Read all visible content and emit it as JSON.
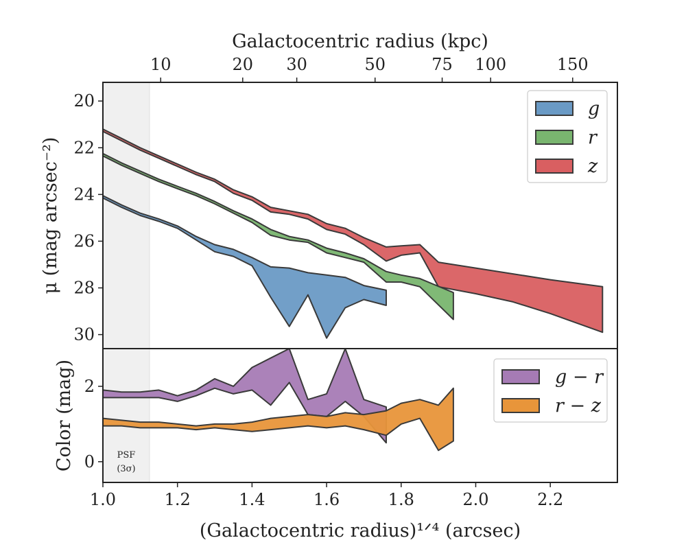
{
  "chart_data": [
    {
      "type": "area",
      "panel": "surface-brightness",
      "ylabel": "μ (mag arcsec⁻²)",
      "ylim": [
        30.6,
        19.2
      ],
      "y_inverted": true,
      "yticks": [
        20,
        22,
        24,
        26,
        28,
        30
      ],
      "xlim": [
        1.0,
        2.38
      ],
      "top_axis": {
        "label": "Galactocentric radius (kpc)",
        "ticks": [
          {
            "label": "10",
            "x": 1.155
          },
          {
            "label": "20",
            "x": 1.375
          },
          {
            "label": "30",
            "x": 1.52
          },
          {
            "label": "50",
            "x": 1.73
          },
          {
            "label": "75",
            "x": 1.91
          },
          {
            "label": "100",
            "x": 2.04
          },
          {
            "label": "150",
            "x": 2.26
          }
        ]
      },
      "shaded_region": {
        "x0": 1.0,
        "x1": 1.125,
        "label_line1": "PSF",
        "label_line2": "(3σ)"
      },
      "legend": {
        "placement": "top-right",
        "entries": [
          "g",
          "r",
          "z"
        ]
      },
      "series": [
        {
          "name": "g",
          "color": "#6a9ac5",
          "x": [
            1.0,
            1.05,
            1.1,
            1.15,
            1.2,
            1.25,
            1.3,
            1.35,
            1.4,
            1.45,
            1.5,
            1.55,
            1.6,
            1.65,
            1.7,
            1.76
          ],
          "y_upper": [
            24.05,
            24.45,
            24.8,
            25.05,
            25.35,
            25.8,
            26.15,
            26.35,
            26.7,
            27.1,
            27.15,
            27.35,
            27.45,
            27.55,
            27.9,
            28.1
          ],
          "y_lower": [
            24.15,
            24.55,
            24.9,
            25.15,
            25.45,
            25.95,
            26.45,
            26.65,
            27.05,
            28.4,
            29.65,
            28.3,
            30.15,
            28.85,
            28.5,
            28.75
          ]
        },
        {
          "name": "r",
          "color": "#79b56f",
          "x": [
            1.0,
            1.05,
            1.1,
            1.15,
            1.2,
            1.25,
            1.3,
            1.35,
            1.4,
            1.45,
            1.5,
            1.55,
            1.6,
            1.65,
            1.7,
            1.76,
            1.8,
            1.85,
            1.94
          ],
          "y_upper": [
            22.25,
            22.65,
            23.0,
            23.35,
            23.65,
            23.95,
            24.3,
            24.7,
            25.05,
            25.5,
            25.8,
            25.95,
            26.3,
            26.5,
            26.75,
            27.3,
            27.45,
            27.6,
            28.2
          ],
          "y_lower": [
            22.35,
            22.75,
            23.1,
            23.45,
            23.75,
            24.05,
            24.4,
            24.8,
            25.2,
            25.75,
            25.95,
            26.05,
            26.5,
            26.7,
            26.9,
            27.75,
            27.75,
            27.95,
            29.35
          ]
        },
        {
          "name": "z",
          "color": "#d95f61",
          "x": [
            1.0,
            1.05,
            1.1,
            1.15,
            1.2,
            1.25,
            1.3,
            1.35,
            1.4,
            1.45,
            1.5,
            1.55,
            1.6,
            1.65,
            1.7,
            1.76,
            1.8,
            1.85,
            1.9,
            2.0,
            2.1,
            2.2,
            2.34
          ],
          "y_upper": [
            21.2,
            21.6,
            22.0,
            22.35,
            22.7,
            23.05,
            23.35,
            23.8,
            24.1,
            24.55,
            24.7,
            24.85,
            25.25,
            25.45,
            25.85,
            26.25,
            26.2,
            26.15,
            26.9,
            27.15,
            27.4,
            27.65,
            27.95
          ],
          "y_lower": [
            21.3,
            21.7,
            22.1,
            22.45,
            22.8,
            23.15,
            23.45,
            23.95,
            24.25,
            24.75,
            24.85,
            25.05,
            25.5,
            25.7,
            26.15,
            26.85,
            26.6,
            26.5,
            27.95,
            28.25,
            28.6,
            29.1,
            29.9
          ]
        }
      ]
    },
    {
      "type": "area",
      "panel": "color",
      "xlabel": "(Galactocentric radius)¹ᐟ⁴ (arcsec)",
      "ylabel": "Color (mag)",
      "ylim": [
        -0.55,
        3.0
      ],
      "yticks": [
        0,
        2
      ],
      "xlim": [
        1.0,
        2.38
      ],
      "xticks": [
        1.0,
        1.2,
        1.4,
        1.6,
        1.8,
        2.0,
        2.2
      ],
      "xtick_labels": [
        "1.0",
        "1.2",
        "1.4",
        "1.6",
        "1.8",
        "2.0",
        "2.2"
      ],
      "shaded_region": {
        "x0": 1.0,
        "x1": 1.125
      },
      "legend": {
        "placement": "top-right",
        "entries": [
          "g − r",
          "r − z"
        ]
      },
      "series": [
        {
          "name": "g − r",
          "color": "#a67bb5",
          "x": [
            1.0,
            1.05,
            1.1,
            1.15,
            1.2,
            1.25,
            1.3,
            1.35,
            1.4,
            1.45,
            1.5,
            1.55,
            1.6,
            1.65,
            1.7,
            1.76
          ],
          "y_upper": [
            1.9,
            1.85,
            1.85,
            1.9,
            1.75,
            1.9,
            2.2,
            2.0,
            2.5,
            2.75,
            3.0,
            1.65,
            1.8,
            3.0,
            1.65,
            1.45
          ],
          "y_lower": [
            1.7,
            1.7,
            1.7,
            1.7,
            1.6,
            1.75,
            1.95,
            1.8,
            1.9,
            1.5,
            2.1,
            1.25,
            1.2,
            1.6,
            1.2,
            0.5
          ]
        },
        {
          "name": "r − z",
          "color": "#e8953a",
          "x": [
            1.0,
            1.05,
            1.1,
            1.15,
            1.2,
            1.25,
            1.3,
            1.35,
            1.4,
            1.45,
            1.5,
            1.55,
            1.6,
            1.65,
            1.7,
            1.76,
            1.8,
            1.85,
            1.9,
            1.94
          ],
          "y_upper": [
            1.15,
            1.1,
            1.05,
            1.05,
            1.0,
            0.95,
            1.0,
            1.0,
            1.05,
            1.15,
            1.2,
            1.25,
            1.2,
            1.3,
            1.25,
            1.35,
            1.55,
            1.65,
            1.5,
            1.95
          ],
          "y_lower": [
            0.95,
            0.95,
            0.9,
            0.9,
            0.9,
            0.85,
            0.9,
            0.85,
            0.8,
            0.85,
            0.9,
            0.95,
            0.9,
            0.95,
            0.85,
            0.7,
            1.0,
            1.15,
            0.3,
            0.55
          ]
        }
      ]
    }
  ]
}
